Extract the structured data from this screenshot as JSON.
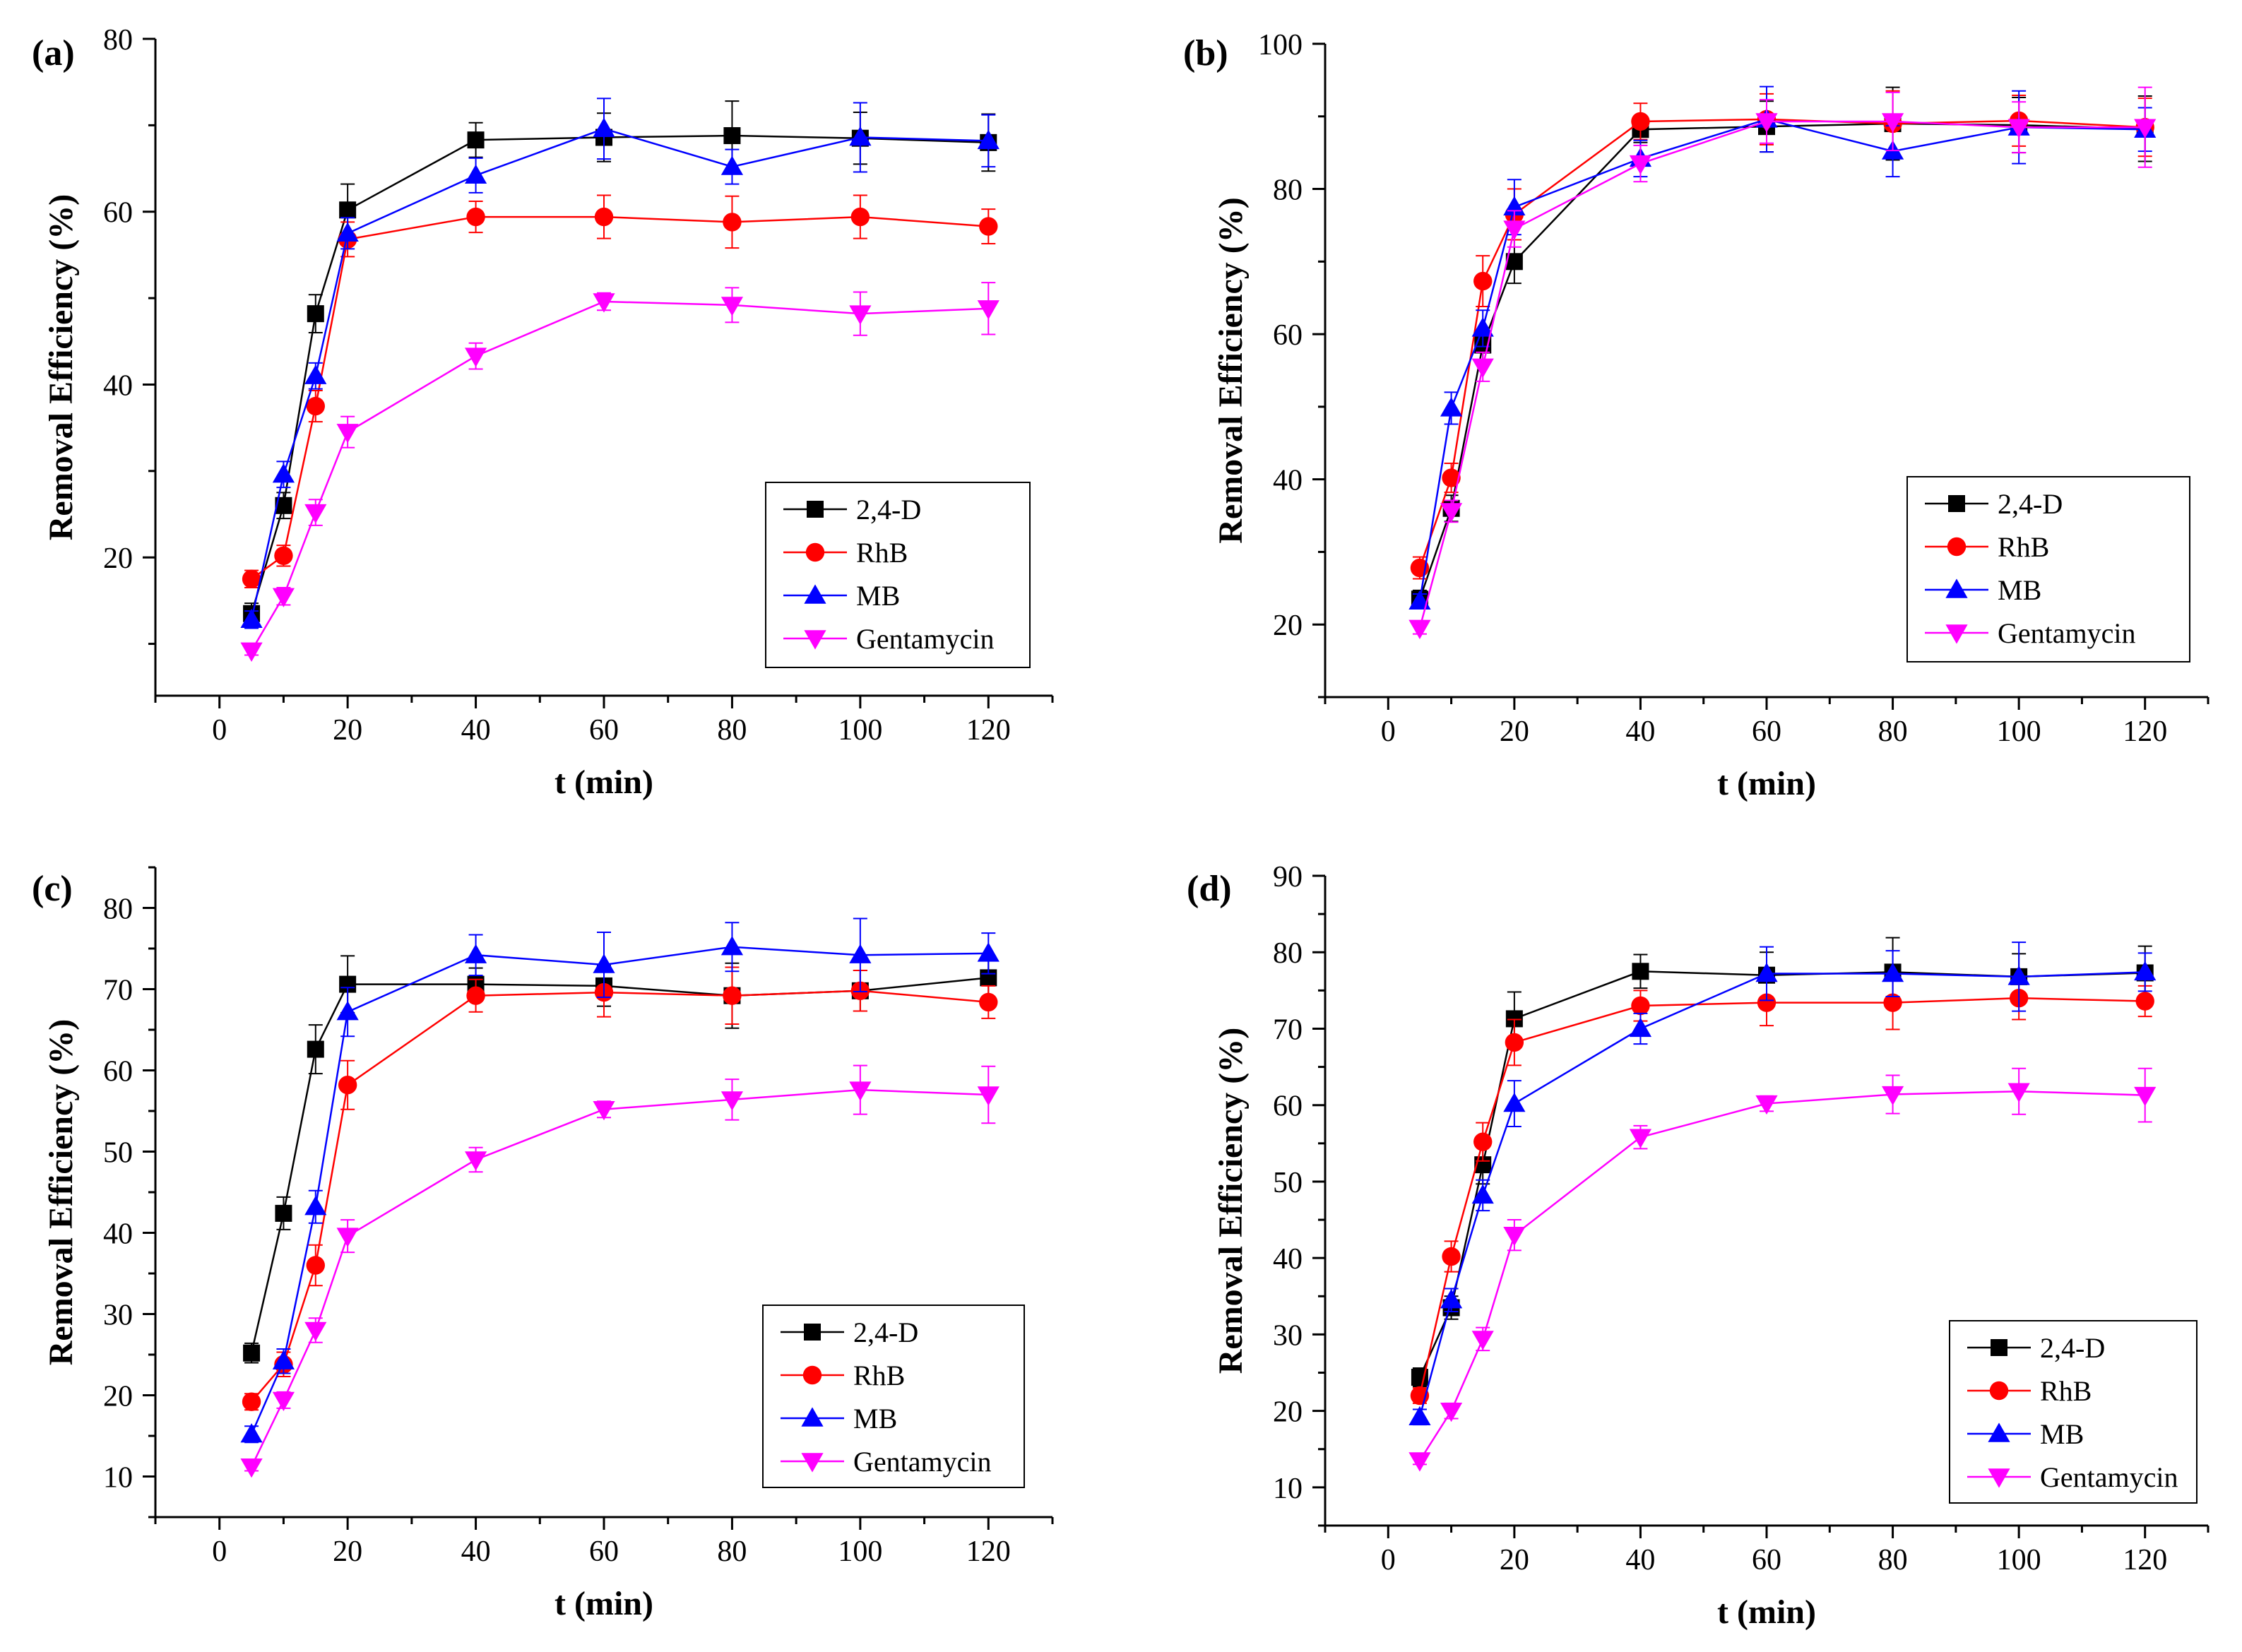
{
  "chart_data": [
    {
      "type": "line",
      "panel_label": "(a)",
      "xlabel": "t (min)",
      "ylabel": "Removal Efficiency (%)",
      "xlim": [
        -10,
        130
      ],
      "ylim": [
        4,
        80
      ],
      "xticks": [
        0,
        20,
        40,
        60,
        80,
        100,
        120
      ],
      "yticks": [
        20,
        40,
        60,
        80
      ],
      "legend_position": "bottom-right",
      "x": [
        5,
        10,
        15,
        20,
        40,
        60,
        80,
        100,
        120
      ],
      "series": [
        {
          "name": "2,4-D",
          "color": "#000000",
          "marker": "square",
          "values": [
            13.5,
            26,
            48.2,
            60.2,
            68.3,
            68.6,
            68.8,
            68.5,
            68.0
          ],
          "errors": [
            1.2,
            1.5,
            2.2,
            3.0,
            2.0,
            2.8,
            4.0,
            3.0,
            3.3
          ]
        },
        {
          "name": "RhB",
          "color": "#ff0000",
          "marker": "circle",
          "values": [
            17.5,
            20.2,
            37.5,
            56.8,
            59.4,
            59.4,
            58.8,
            59.4,
            58.3
          ],
          "errors": [
            1.0,
            1.2,
            1.8,
            2.0,
            1.8,
            2.5,
            3.0,
            2.5,
            2.0
          ]
        },
        {
          "name": "MB",
          "color": "#0000ff",
          "marker": "triangle-up",
          "values": [
            12.8,
            29.6,
            41.0,
            57.5,
            64.2,
            69.6,
            65.2,
            68.6,
            68.2
          ],
          "errors": [
            1.0,
            1.5,
            1.5,
            1.8,
            2.0,
            3.5,
            2.0,
            4.0,
            3.0
          ]
        },
        {
          "name": "Gentamycin",
          "color": "#ff00ff",
          "marker": "triangle-down",
          "values": [
            9.2,
            15.5,
            25.2,
            34.5,
            43.3,
            49.6,
            49.2,
            48.2,
            48.8
          ],
          "errors": [
            0.5,
            1.0,
            1.5,
            1.8,
            1.5,
            1.0,
            2.0,
            2.5,
            3.0
          ]
        }
      ]
    },
    {
      "type": "line",
      "panel_label": "(b)",
      "xlabel": "t (min)",
      "ylabel": "Removal Efficiency (%)",
      "xlim": [
        -10,
        130
      ],
      "ylim": [
        10,
        100
      ],
      "xticks": [
        0,
        20,
        40,
        60,
        80,
        100,
        120
      ],
      "yticks": [
        20,
        40,
        60,
        80,
        100
      ],
      "legend_position": "bottom-right",
      "x": [
        5,
        10,
        15,
        20,
        40,
        60,
        80,
        100,
        120
      ],
      "series": [
        {
          "name": "2,4-D",
          "color": "#000000",
          "marker": "square",
          "values": [
            23.5,
            36,
            58.5,
            70,
            88.2,
            88.6,
            89.0,
            88.8,
            88.3
          ],
          "errors": [
            1.2,
            1.8,
            2.0,
            3.0,
            1.8,
            3.5,
            5.0,
            3.8,
            4.5
          ]
        },
        {
          "name": "RhB",
          "color": "#ff0000",
          "marker": "circle",
          "values": [
            27.8,
            40.2,
            67.3,
            76.5,
            89.3,
            89.6,
            89.0,
            89.4,
            88.5
          ],
          "errors": [
            1.5,
            2.0,
            3.5,
            3.5,
            2.5,
            3.5,
            4.5,
            3.5,
            4.0
          ]
        },
        {
          "name": "MB",
          "color": "#0000ff",
          "marker": "triangle-up",
          "values": [
            23.2,
            49.8,
            60.8,
            77.5,
            84.2,
            89.6,
            85.2,
            88.5,
            88.2
          ],
          "errors": [
            1.0,
            2.2,
            2.5,
            3.8,
            2.5,
            4.5,
            3.5,
            5.0,
            3.0
          ]
        },
        {
          "name": "Gentamycin",
          "color": "#ff00ff",
          "marker": "triangle-down",
          "values": [
            19.5,
            35.6,
            55.5,
            74.5,
            83.5,
            89.3,
            89.3,
            88.5,
            88.5
          ],
          "errors": [
            0.8,
            1.5,
            2.0,
            2.5,
            2.5,
            3.0,
            4.0,
            3.5,
            5.5
          ]
        }
      ]
    },
    {
      "type": "line",
      "panel_label": "(c)",
      "xlabel": "t (min)",
      "ylabel": "Removal Efficiency (%)",
      "xlim": [
        -10,
        130
      ],
      "ylim": [
        5,
        85
      ],
      "xticks": [
        0,
        20,
        40,
        60,
        80,
        100,
        120
      ],
      "yticks": [
        10,
        20,
        30,
        40,
        50,
        60,
        70,
        80
      ],
      "legend_position": "bottom-right",
      "x": [
        5,
        10,
        15,
        20,
        40,
        60,
        80,
        100,
        120
      ],
      "series": [
        {
          "name": "2,4-D",
          "color": "#000000",
          "marker": "square",
          "values": [
            25.2,
            42.4,
            62.6,
            70.6,
            70.6,
            70.4,
            69.2,
            69.8,
            71.4
          ],
          "errors": [
            1.2,
            2.0,
            3.0,
            3.5,
            2.0,
            2.5,
            4.0,
            2.5,
            2.5
          ]
        },
        {
          "name": "RhB",
          "color": "#ff0000",
          "marker": "circle",
          "values": [
            19.2,
            23.8,
            36.0,
            58.2,
            69.2,
            69.6,
            69.2,
            69.8,
            68.4
          ],
          "errors": [
            1.0,
            1.5,
            2.5,
            3.0,
            2.0,
            3.0,
            3.5,
            2.5,
            2.0
          ]
        },
        {
          "name": "MB",
          "color": "#0000ff",
          "marker": "triangle-up",
          "values": [
            15.2,
            24.2,
            43.2,
            67.2,
            74.2,
            73.0,
            75.2,
            74.2,
            74.4
          ],
          "errors": [
            1.0,
            1.5,
            2.0,
            3.0,
            2.5,
            4.0,
            3.0,
            4.5,
            2.5
          ]
        },
        {
          "name": "Gentamycin",
          "color": "#ff00ff",
          "marker": "triangle-down",
          "values": [
            11.2,
            19.4,
            28.0,
            39.6,
            49.0,
            55.2,
            56.4,
            57.6,
            57.0
          ],
          "errors": [
            0.5,
            1.0,
            1.5,
            2.0,
            1.5,
            1.0,
            2.5,
            3.0,
            3.5
          ]
        }
      ]
    },
    {
      "type": "line",
      "panel_label": "(d)",
      "xlabel": "t (min)",
      "ylabel": "Removal Efficiency (%)",
      "xlim": [
        -10,
        130
      ],
      "ylim": [
        5,
        90
      ],
      "xticks": [
        0,
        20,
        40,
        60,
        80,
        100,
        120
      ],
      "yticks": [
        10,
        20,
        30,
        40,
        50,
        60,
        70,
        80,
        90
      ],
      "legend_position": "bottom-right",
      "x": [
        5,
        10,
        15,
        20,
        40,
        60,
        80,
        100,
        120
      ],
      "series": [
        {
          "name": "2,4-D",
          "color": "#000000",
          "marker": "square",
          "values": [
            24.4,
            33.5,
            52.2,
            71.3,
            77.5,
            77.0,
            77.4,
            76.8,
            77.3
          ],
          "errors": [
            1.2,
            1.5,
            2.5,
            3.5,
            2.2,
            3.0,
            4.5,
            3.0,
            3.5
          ]
        },
        {
          "name": "RhB",
          "color": "#ff0000",
          "marker": "circle",
          "values": [
            22.0,
            40.2,
            55.2,
            68.2,
            73.0,
            73.4,
            73.4,
            74.0,
            73.6
          ],
          "errors": [
            1.0,
            2.0,
            2.5,
            3.0,
            2.0,
            3.0,
            3.5,
            2.8,
            2.0
          ]
        },
        {
          "name": "MB",
          "color": "#0000ff",
          "marker": "triangle-up",
          "values": [
            19.2,
            34.5,
            48.2,
            60.2,
            70.0,
            77.2,
            77.2,
            76.8,
            77.4
          ],
          "errors": [
            1.0,
            1.5,
            2.0,
            3.0,
            2.0,
            3.5,
            3.0,
            4.5,
            2.5
          ]
        },
        {
          "name": "Gentamycin",
          "color": "#ff00ff",
          "marker": "triangle-down",
          "values": [
            13.5,
            20.0,
            29.4,
            43.0,
            55.8,
            60.2,
            61.4,
            61.8,
            61.3
          ],
          "errors": [
            0.5,
            1.0,
            1.5,
            2.0,
            1.5,
            1.0,
            2.5,
            3.0,
            3.5
          ]
        }
      ]
    }
  ]
}
